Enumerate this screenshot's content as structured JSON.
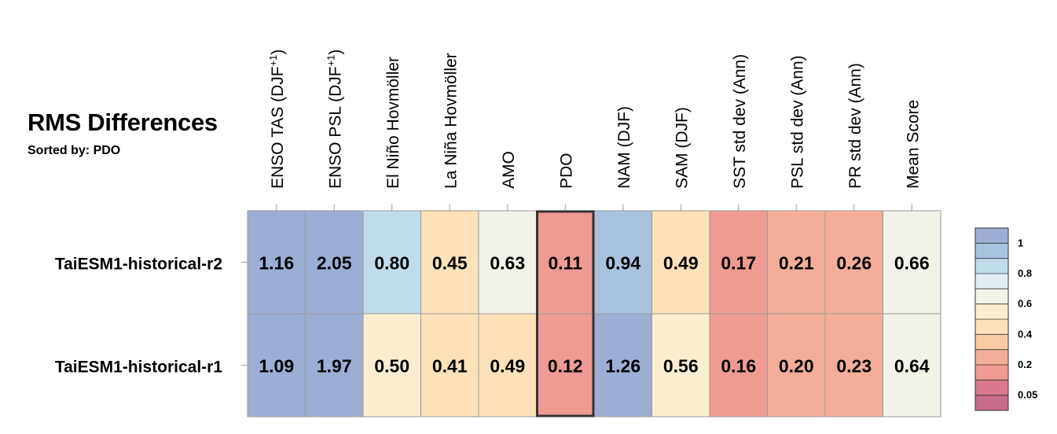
{
  "chart_data": {
    "type": "heatmap",
    "title": "RMS Differences",
    "subtitle": "Sorted by: PDO",
    "columns": [
      "ENSO TAS (DJF+1)",
      "ENSO PSL (DJF+1)",
      "El Niño Hovmöller",
      "La Niña Hovmöller",
      "AMO",
      "PDO",
      "NAM (DJF)",
      "SAM (DJF)",
      "SST std dev (Ann)",
      "PSL std dev (Ann)",
      "PR std dev (Ann)",
      "Mean Score"
    ],
    "rows": [
      "TaiESM1-historical-r2",
      "TaiESM1-historical-r1"
    ],
    "values": [
      [
        1.16,
        2.05,
        0.8,
        0.45,
        0.63,
        0.11,
        0.94,
        0.49,
        0.17,
        0.21,
        0.26,
        0.66
      ],
      [
        1.09,
        1.97,
        0.5,
        0.41,
        0.49,
        0.12,
        1.26,
        0.56,
        0.16,
        0.2,
        0.23,
        0.64
      ]
    ],
    "value_labels": [
      [
        "1.16",
        "2.05",
        "0.80",
        "0.45",
        "0.63",
        "0.11",
        "0.94",
        "0.49",
        "0.17",
        "0.21",
        "0.26",
        "0.66"
      ],
      [
        "1.09",
        "1.97",
        "0.50",
        "0.41",
        "0.49",
        "0.12",
        "1.26",
        "0.56",
        "0.16",
        "0.20",
        "0.23",
        "0.64"
      ]
    ],
    "highlighted_column": "PDO",
    "colorbar": {
      "ticks": [
        "1",
        "0.8",
        "0.6",
        "0.4",
        "0.2",
        "0.05"
      ],
      "levels": [
        1.0,
        0.9,
        0.8,
        0.7,
        0.6,
        0.5,
        0.4,
        0.3,
        0.2,
        0.1,
        0.05
      ],
      "colors": [
        "#9daed4",
        "#a9c3df",
        "#c0dbea",
        "#e2eef4",
        "#f2f2e8",
        "#fbeed0",
        "#fde1b8",
        "#fbcaa2",
        "#f4ae98",
        "#ef9a92",
        "#d9788e",
        "#c86b88"
      ]
    }
  }
}
